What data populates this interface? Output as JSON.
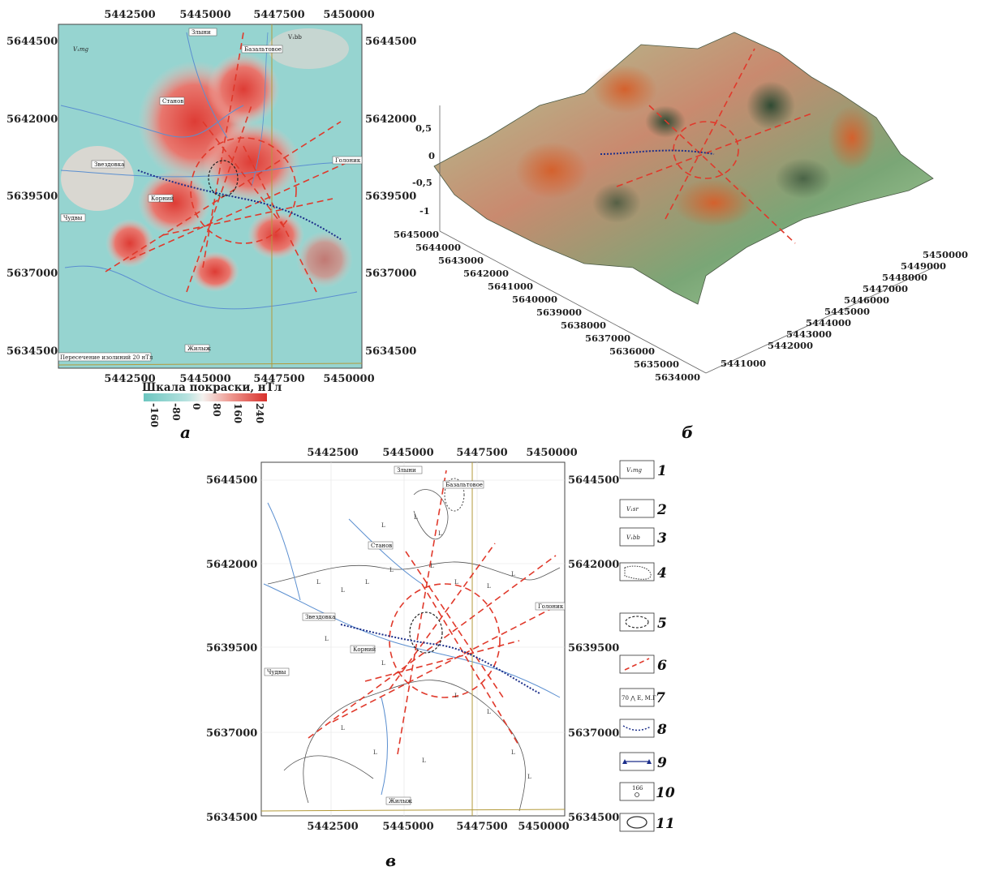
{
  "panels": {
    "a": "а",
    "b": "б",
    "v": "в"
  },
  "map_a": {
    "x_ticks": [
      "5442500",
      "5445000",
      "5447500",
      "5450000"
    ],
    "y_ticks": [
      "5644500",
      "5642000",
      "5639500",
      "5637000",
      "5634500"
    ],
    "label_vmg": "V₁mg",
    "label_vbb": "V₁bb",
    "isoline_note": "Пересечение изолиний 20 нТл",
    "towns": [
      "Злыни",
      "Базальтовое",
      "Станов",
      "Голоник",
      "Звездовка",
      "Корний",
      "Чудвы",
      "Жилыж"
    ],
    "colorbar_title": "Шкала покраски, нТл",
    "colorbar_labels": [
      "-160",
      "-80",
      "0",
      "80",
      "160",
      "240"
    ]
  },
  "surface_b": {
    "z_ticks": [
      "0,5",
      "0",
      "-0,5",
      "-1"
    ],
    "y_axis_ticks": [
      "5645000",
      "5644000",
      "5643000",
      "5642000",
      "5641000",
      "5640000",
      "5639000",
      "5638000",
      "5637000",
      "5636000",
      "5635000",
      "5634000"
    ],
    "x_axis_ticks": [
      "5450000",
      "5449000",
      "5448000",
      "5447000",
      "5446000",
      "5445000",
      "5444000",
      "5443000",
      "5442000",
      "5441000"
    ]
  },
  "map_v": {
    "x_ticks": [
      "5442500",
      "5445000",
      "5447500",
      "5450000"
    ],
    "y_ticks": [
      "5644500",
      "5642000",
      "5639500",
      "5637000",
      "5634500"
    ],
    "towns": [
      "Злыни",
      "Базальтовое",
      "Станов",
      "Голоник",
      "Звездовка",
      "Корний",
      "Чудвы",
      "Жилыж"
    ]
  },
  "legend": [
    {
      "num": "1",
      "label": "V₁mg"
    },
    {
      "num": "2",
      "label": "V₁sr"
    },
    {
      "num": "3",
      "label": "V₁bb"
    },
    {
      "num": "4",
      "label": ""
    },
    {
      "num": "5",
      "label": ""
    },
    {
      "num": "6",
      "label": ""
    },
    {
      "num": "7",
      "label": "70 ⋀ Е, М.Г"
    },
    {
      "num": "8",
      "label": ""
    },
    {
      "num": "9",
      "label": ""
    },
    {
      "num": "10",
      "label": "166"
    },
    {
      "num": "11",
      "label": ""
    }
  ],
  "colors": {
    "teal": "#8fd3cf",
    "red": "#e0463c",
    "fault": "#e0392b",
    "profile": "#1c2f8a",
    "river": "#5b8fd0",
    "road": "#b39a3a"
  }
}
